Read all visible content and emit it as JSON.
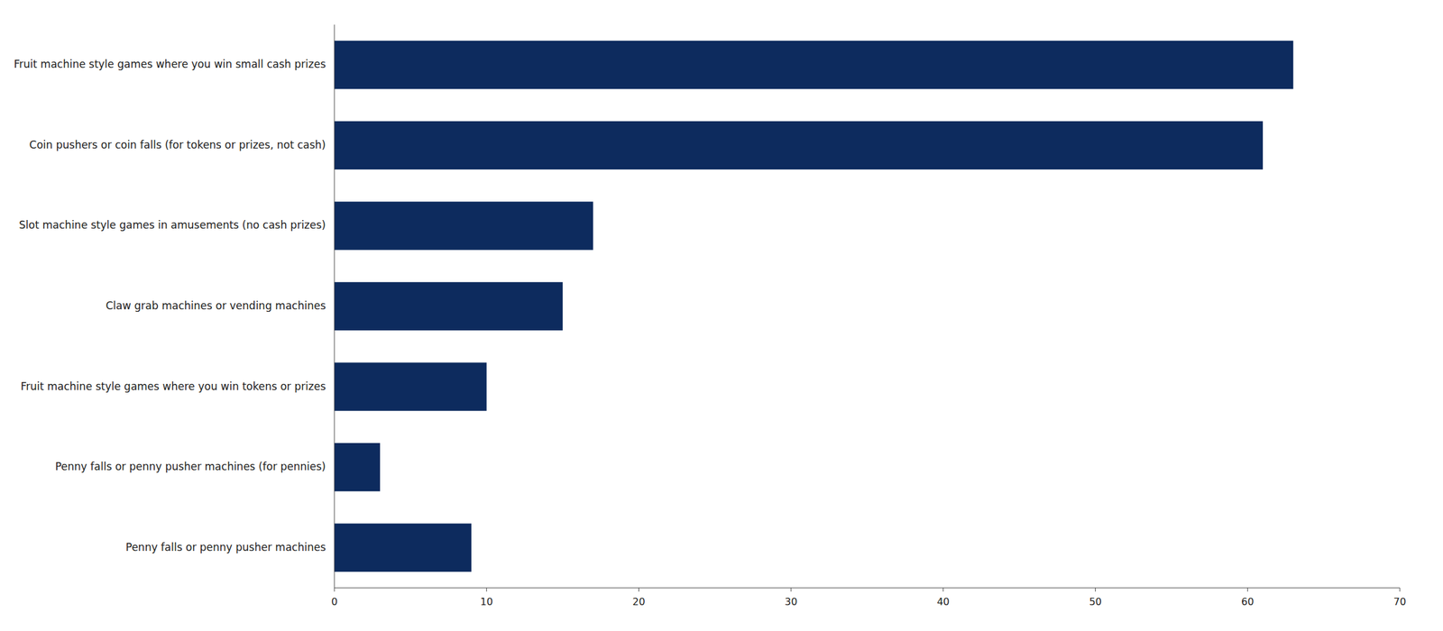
{
  "chart_data": {
    "type": "bar",
    "orientation": "horizontal",
    "categories": [
      "Fruit machine style games where you win small cash prizes",
      "Coin pushers or coin falls (for tokens or prizes, not cash)",
      "Slot machine style games in amusements (no cash prizes)",
      "Claw grab machines or vending machines",
      "Fruit machine style games where you win tokens or prizes",
      "Penny falls or penny pusher machines (for pennies)",
      "Penny falls or penny pusher machines"
    ],
    "values": [
      63,
      61,
      17,
      15,
      10,
      3,
      9
    ],
    "color": "#0d2b5e",
    "xlim": [
      0,
      70
    ],
    "xticks": [
      0,
      10,
      20,
      30,
      40,
      50,
      60,
      70
    ],
    "grid": false
  }
}
